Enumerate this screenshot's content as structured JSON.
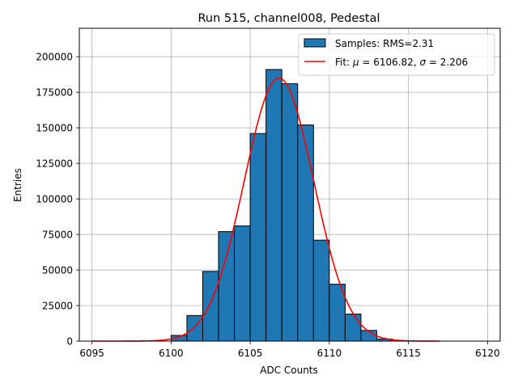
{
  "chart_data": {
    "type": "bar",
    "title": "Run 515, channel008, Pedestal",
    "xlabel": "ADC Counts",
    "ylabel": "Entries",
    "xlim": [
      6094.2,
      6120.8
    ],
    "ylim": [
      0,
      220000
    ],
    "xticks": [
      6095,
      6100,
      6105,
      6110,
      6115,
      6120
    ],
    "xtick_labels": [
      "6095",
      "6100",
      "6105",
      "6110",
      "6115",
      "6120"
    ],
    "yticks": [
      0,
      25000,
      50000,
      75000,
      100000,
      125000,
      150000,
      175000,
      200000
    ],
    "ytick_labels": [
      "0",
      "25000",
      "50000",
      "75000",
      "100000",
      "125000",
      "150000",
      "175000",
      "200000"
    ],
    "grid": true,
    "legend_position": "upper right",
    "bin_edges": [
      6094,
      6095,
      6096,
      6097,
      6098,
      6099,
      6100,
      6101,
      6102,
      6103,
      6104,
      6105,
      6106,
      6107,
      6108,
      6109,
      6110,
      6111,
      6112,
      6113,
      6114,
      6115,
      6116,
      6117,
      6118,
      6119,
      6120
    ],
    "series": [
      {
        "name": "Samples: RMS=2.31",
        "kind": "histogram",
        "color": "#1f77b4",
        "edgecolor": "#000000",
        "bins": [
          {
            "x0": 6100,
            "x1": 6101,
            "count": 4000
          },
          {
            "x0": 6101,
            "x1": 6102,
            "count": 18000
          },
          {
            "x0": 6102,
            "x1": 6103,
            "count": 49000
          },
          {
            "x0": 6103,
            "x1": 6104,
            "count": 77000
          },
          {
            "x0": 6104,
            "x1": 6105,
            "count": 81000
          },
          {
            "x0": 6105,
            "x1": 6106,
            "count": 146000
          },
          {
            "x0": 6106,
            "x1": 6107,
            "count": 191000
          },
          {
            "x0": 6107,
            "x1": 6108,
            "count": 181000
          },
          {
            "x0": 6108,
            "x1": 6109,
            "count": 152000
          },
          {
            "x0": 6109,
            "x1": 6110,
            "count": 71000
          },
          {
            "x0": 6110,
            "x1": 6111,
            "count": 40000
          },
          {
            "x0": 6111,
            "x1": 6112,
            "count": 19000
          },
          {
            "x0": 6112,
            "x1": 6113,
            "count": 7500
          },
          {
            "x0": 6113,
            "x1": 6114,
            "count": 1500
          },
          {
            "x0": 6114,
            "x1": 6115,
            "count": 300
          }
        ]
      },
      {
        "name_prefix": "Fit: ",
        "name_mu_symbol": "μ",
        "name_mu_text": " = 6106.82, ",
        "name_sigma_symbol": "σ",
        "name_sigma_text": " = 2.206",
        "kind": "gaussian_fit",
        "color": "#ff0000",
        "mu": 6106.82,
        "sigma": 2.206,
        "amplitude": 185000,
        "x_range": [
          6095,
          6117
        ]
      }
    ]
  }
}
